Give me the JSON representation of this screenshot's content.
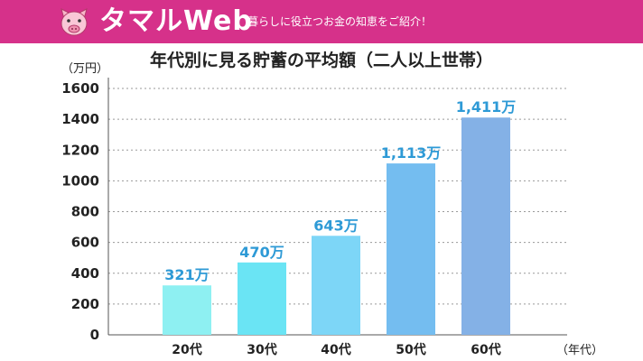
{
  "header": {
    "brand_name": "タマルWeb",
    "tagline": "暮らしに役立つお金の知恵をご紹介！",
    "logo_icon": "pig-icon",
    "brand_color": "#d6318a"
  },
  "chart_data": {
    "type": "bar",
    "title": "年代別に見る貯蓄の平均額（二人以上世帯）",
    "ylabel": "（万円）",
    "xlabel": "（年代）",
    "categories": [
      "20代",
      "30代",
      "40代",
      "50代",
      "60代"
    ],
    "values": [
      321,
      470,
      643,
      1113,
      1411
    ],
    "data_labels": [
      "321万",
      "470万",
      "643万",
      "1,113万",
      "1,411万"
    ],
    "ylim": [
      0,
      1600
    ],
    "yticks": [
      0,
      200,
      400,
      600,
      800,
      1000,
      1200,
      1400,
      1600
    ],
    "grid": true,
    "bar_colors": [
      "#8ef0f2",
      "#6ae4f4",
      "#7dd6f7",
      "#74bdf0",
      "#84b1e6"
    ],
    "label_color": "#2e9ad6"
  }
}
